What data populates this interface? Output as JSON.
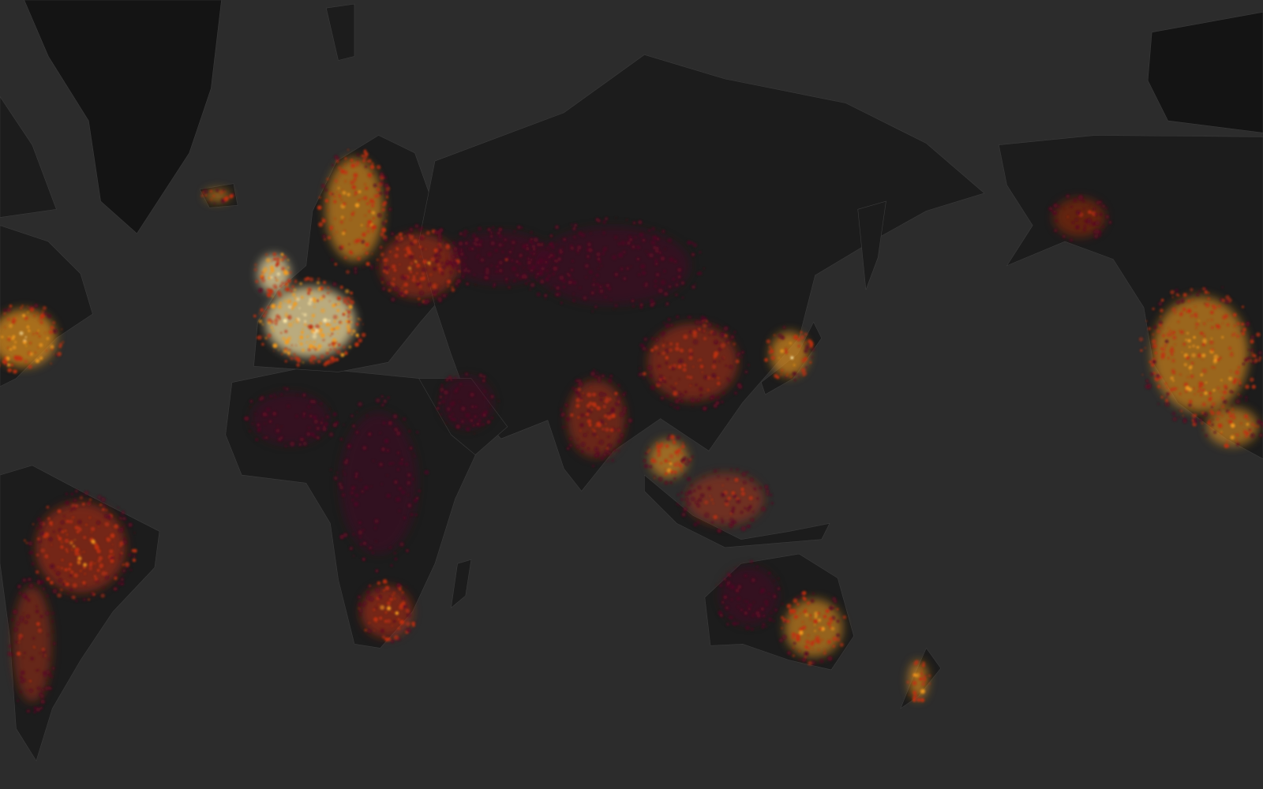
{
  "map": {
    "type": "global activity heatmap",
    "projection": "mercator",
    "colors": {
      "ocean": "#2c2c2c",
      "land": "#1c1c1c",
      "land_dark": "#141414",
      "borders": "#3a3a3a",
      "heat_low": "#5a0a24",
      "heat_mid": "#c0300f",
      "heat_high": "#f39a1c",
      "heat_peak": "#fde8a8"
    }
  }
}
